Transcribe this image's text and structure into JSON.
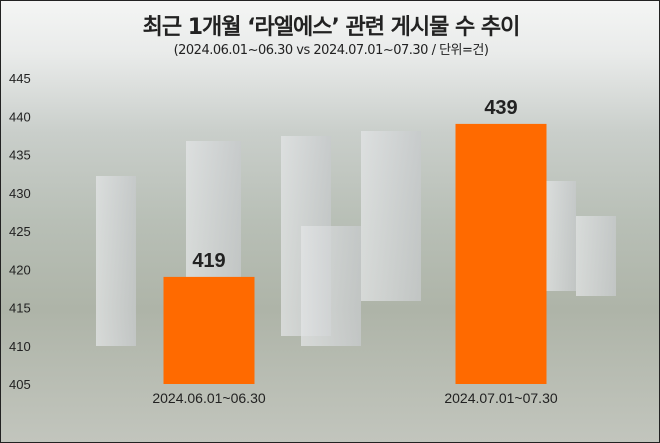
{
  "chart_data": {
    "type": "bar",
    "title": "최근 1개월 ‘라엘에스’ 관련 게시물 수 추이",
    "subtitle": "(2024.06.01~06.30 vs 2024.07.01~07.30 / 단위=건)",
    "categories": [
      "2024.06.01~06.30",
      "2024.07.01~07.30"
    ],
    "values": [
      419,
      439
    ],
    "ylim": [
      405,
      445
    ],
    "yticks": [
      405,
      410,
      415,
      420,
      425,
      430,
      435,
      440,
      445
    ],
    "xlabel": "",
    "ylabel": "",
    "grid": false,
    "bar_color": "#ff6a00"
  }
}
